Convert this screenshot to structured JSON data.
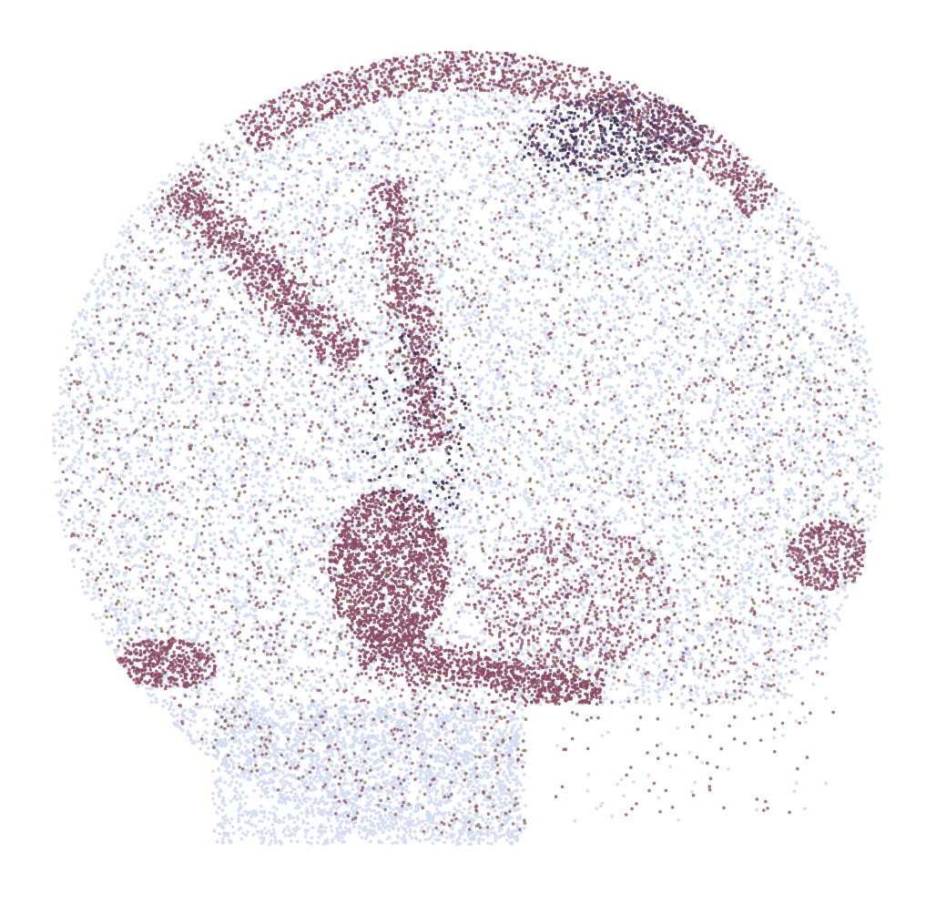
{
  "chart_data": {
    "type": "scatter",
    "title": "",
    "xlabel": "",
    "ylabel": "",
    "axes_visible": false,
    "grid": false,
    "legend": "none",
    "xlim": [
      0,
      1000
    ],
    "ylim": [
      0,
      1000
    ],
    "palette": {
      "background_cells": "#d4dcf2",
      "maroon": "#8a4a63",
      "dark_purple": "#5a3a63",
      "navy": "#2e2f52",
      "brown": "#8e5f4a",
      "olive": "#8f9468",
      "green": "#7fa87a"
    },
    "point_sets": [
      {
        "color": "background_cells",
        "n": 14000,
        "shape": "disk",
        "cx": 505,
        "cy": 495,
        "rx": 448,
        "ry": 438,
        "opacity": 0.9
      },
      {
        "color": "background_cells",
        "n": 1800,
        "shape": "box",
        "x0": 230,
        "x1": 560,
        "y0": 780,
        "y1": 935,
        "opacity": 0.9
      },
      {
        "color": "maroon",
        "n": 900,
        "shape": "band",
        "x0": 190,
        "y0": 205,
        "x1": 380,
        "y1": 400,
        "w": 30,
        "opacity": 0.8
      },
      {
        "color": "maroon",
        "n": 800,
        "shape": "band",
        "x0": 420,
        "y0": 200,
        "x1": 470,
        "y1": 500,
        "w": 26,
        "opacity": 0.8
      },
      {
        "color": "maroon",
        "n": 1500,
        "shape": "ellipse",
        "cx": 420,
        "cy": 630,
        "rx": 65,
        "ry": 90,
        "opacity": 0.85
      },
      {
        "color": "maroon",
        "n": 900,
        "shape": "band",
        "x0": 390,
        "y0": 720,
        "x1": 650,
        "y1": 770,
        "w": 28,
        "opacity": 0.85
      },
      {
        "color": "maroon",
        "n": 1400,
        "shape": "arc",
        "cx": 505,
        "cy": 495,
        "r0": 395,
        "r1": 440,
        "a0": 235,
        "a1": 320,
        "opacity": 0.8
      },
      {
        "color": "dark_purple",
        "n": 500,
        "shape": "ellipse",
        "cx": 665,
        "cy": 150,
        "rx": 95,
        "ry": 45,
        "opacity": 0.8
      },
      {
        "color": "maroon",
        "n": 400,
        "shape": "ellipse",
        "cx": 180,
        "cy": 735,
        "rx": 55,
        "ry": 28,
        "opacity": 0.8
      },
      {
        "color": "maroon",
        "n": 350,
        "shape": "ellipse",
        "cx": 895,
        "cy": 615,
        "rx": 45,
        "ry": 40,
        "opacity": 0.8
      },
      {
        "color": "maroon",
        "n": 600,
        "shape": "ellipse",
        "cx": 620,
        "cy": 660,
        "rx": 110,
        "ry": 80,
        "opacity": 0.75
      },
      {
        "color": "maroon",
        "n": 2400,
        "shape": "disk",
        "cx": 505,
        "cy": 495,
        "rx": 440,
        "ry": 430,
        "opacity": 0.7
      },
      {
        "color": "navy",
        "n": 140,
        "shape": "ellipse",
        "cx": 450,
        "cy": 480,
        "rx": 60,
        "ry": 120,
        "opacity": 0.85
      },
      {
        "color": "navy",
        "n": 120,
        "shape": "ellipse",
        "cx": 640,
        "cy": 160,
        "rx": 80,
        "ry": 40,
        "opacity": 0.85
      },
      {
        "color": "brown",
        "n": 700,
        "shape": "disk",
        "cx": 505,
        "cy": 495,
        "rx": 440,
        "ry": 430,
        "opacity": 0.75
      },
      {
        "color": "olive",
        "n": 320,
        "shape": "disk",
        "cx": 505,
        "cy": 495,
        "rx": 440,
        "ry": 430,
        "opacity": 0.8
      },
      {
        "color": "green",
        "n": 40,
        "shape": "disk",
        "cx": 505,
        "cy": 495,
        "rx": 440,
        "ry": 430,
        "opacity": 0.8
      },
      {
        "color": "maroon",
        "n": 90,
        "shape": "box",
        "x0": 600,
        "x1": 900,
        "y0": 640,
        "y1": 910,
        "opacity": 0.75
      },
      {
        "color": "background_cells",
        "n": 60,
        "shape": "box",
        "x0": 600,
        "x1": 900,
        "y0": 640,
        "y1": 910,
        "opacity": 0.9
      }
    ]
  }
}
